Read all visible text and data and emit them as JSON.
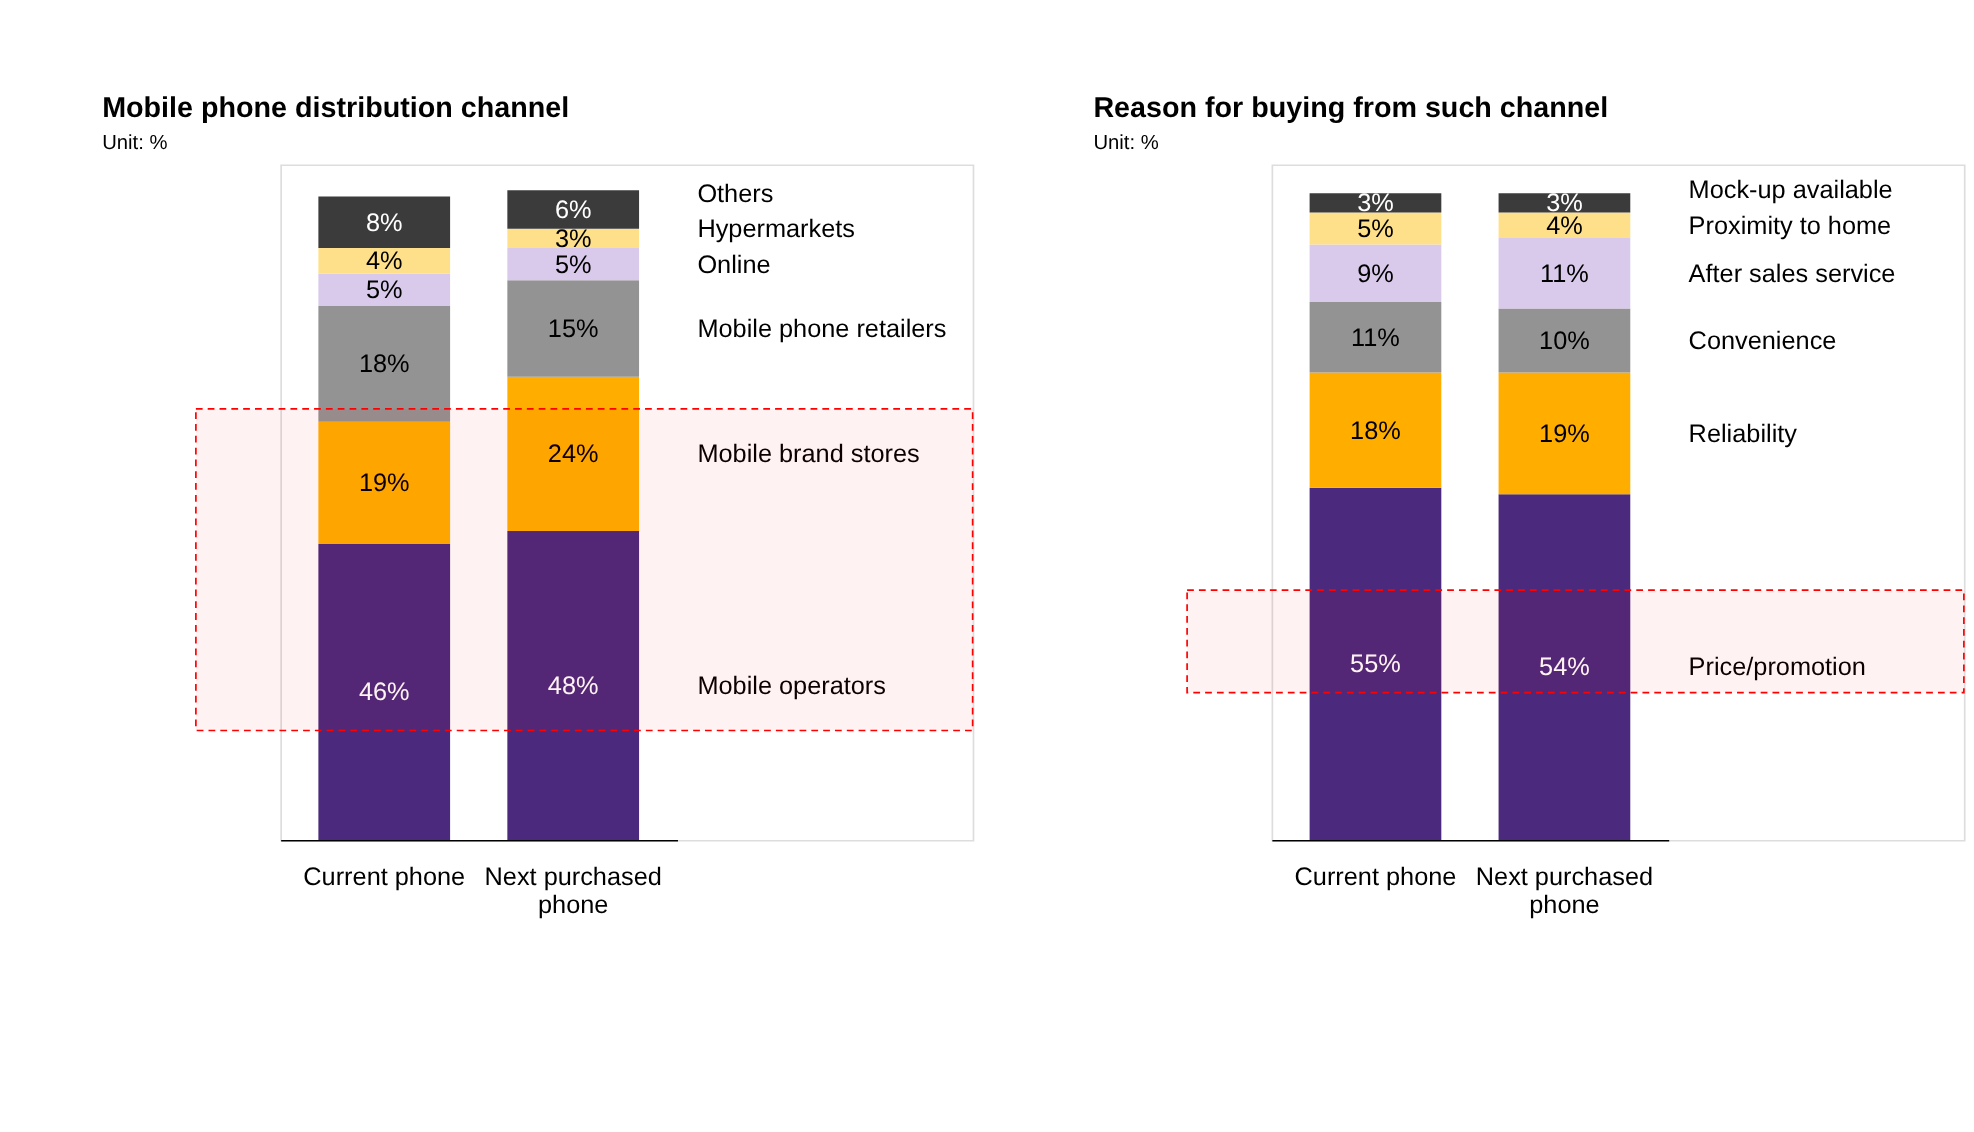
{
  "chart_data": [
    {
      "type": "bar",
      "stacked": true,
      "title": "Mobile phone distribution channel",
      "annotations": [
        "Unit: %"
      ],
      "categories": [
        "Current phone",
        "Next purchased phone"
      ],
      "series": [
        {
          "name": "Mobile operators",
          "color": "#4b2a7d",
          "values": [
            46,
            48
          ],
          "value_labels": [
            "46%",
            "48%"
          ]
        },
        {
          "name": "Mobile brand stores",
          "color": "#ffae00",
          "values": [
            19,
            24
          ],
          "value_labels": [
            "19%",
            "24%"
          ]
        },
        {
          "name": "Mobile phone retailers",
          "color": "#939393",
          "values": [
            18,
            15
          ],
          "value_labels": [
            "18%",
            "15%"
          ]
        },
        {
          "name": "Online",
          "color": "#d9caec",
          "values": [
            5,
            5
          ],
          "value_labels": [
            "5%",
            "5%"
          ]
        },
        {
          "name": "Hypermarkets",
          "color": "#ffe08a",
          "values": [
            4,
            3
          ],
          "value_labels": [
            "4%",
            "3%"
          ]
        },
        {
          "name": "Others",
          "color": "#3b3b3b",
          "values": [
            8,
            6
          ],
          "value_labels": [
            "8%",
            "6%"
          ]
        }
      ],
      "bands": [
        {
          "axis": "y",
          "from": 17,
          "to": 67,
          "color": "#ff0000"
        }
      ]
    },
    {
      "type": "bar",
      "stacked": true,
      "title": "Reason for buying from such channel",
      "annotations": [
        "Unit: %"
      ],
      "categories": [
        "Current phone",
        "Next purchased phone"
      ],
      "series": [
        {
          "name": "Price/promotion",
          "color": "#4b2a7d",
          "values": [
            55,
            54
          ],
          "value_labels": [
            "55%",
            "54%"
          ]
        },
        {
          "name": "Reliability",
          "color": "#ffae00",
          "values": [
            18,
            19
          ],
          "value_labels": [
            "18%",
            "19%"
          ]
        },
        {
          "name": "Convenience",
          "color": "#939393",
          "values": [
            11,
            10
          ],
          "value_labels": [
            "11%",
            "10%"
          ]
        },
        {
          "name": "After sales service",
          "color": "#d9caec",
          "values": [
            9,
            11
          ],
          "value_labels": [
            "9%",
            "11%"
          ]
        },
        {
          "name": "Proximity to home",
          "color": "#ffe08a",
          "values": [
            5,
            4
          ],
          "value_labels": [
            "5%",
            "4%"
          ]
        },
        {
          "name": "Mock-up available",
          "color": "#3b3b3b",
          "values": [
            3,
            3
          ],
          "value_labels": [
            "3%",
            "3%"
          ]
        }
      ],
      "bands": [
        {
          "axis": "y",
          "from": 23,
          "to": 39,
          "color": "#ff0000"
        }
      ]
    }
  ]
}
